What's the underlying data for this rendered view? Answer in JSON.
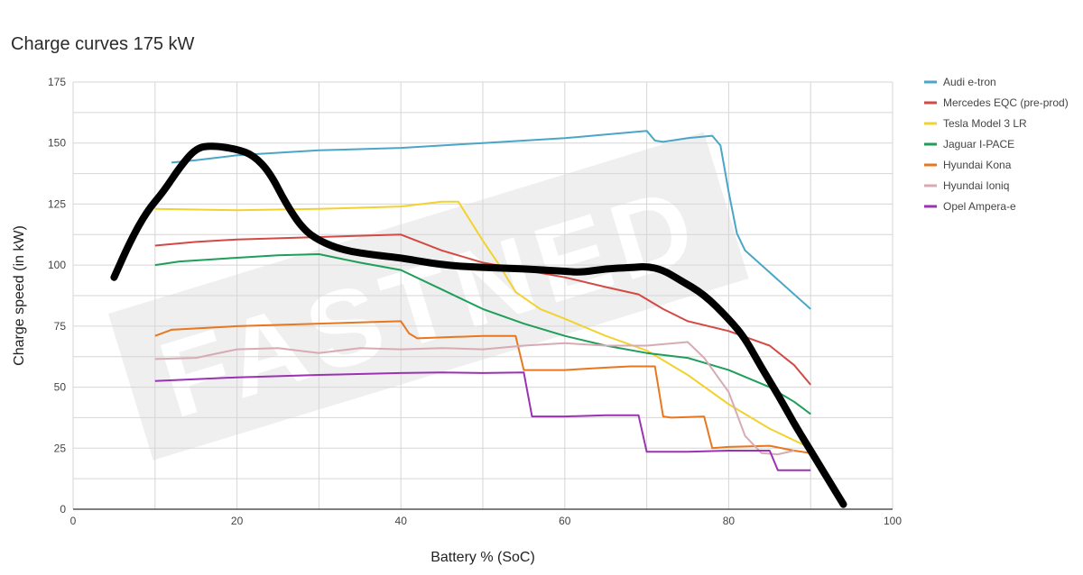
{
  "chart_data": {
    "type": "line",
    "title": "Charge curves 175 kW",
    "xlabel": "Battery % (SoC)",
    "ylabel": "Charge speed (in kW)",
    "xlim": [
      0,
      100
    ],
    "ylim": [
      0,
      175
    ],
    "xticks": [
      0,
      20,
      40,
      60,
      80,
      100
    ],
    "yticks": [
      0,
      25,
      50,
      75,
      100,
      125,
      150,
      175
    ],
    "grid": true,
    "legend_position": "right",
    "watermark": "FASTNED",
    "series": [
      {
        "name": "Audi e-tron",
        "color": "#4aa6c8",
        "points": [
          [
            12,
            142
          ],
          [
            15,
            143
          ],
          [
            20,
            145
          ],
          [
            30,
            147
          ],
          [
            40,
            148
          ],
          [
            50,
            150
          ],
          [
            60,
            152
          ],
          [
            65,
            153.5
          ],
          [
            70,
            155
          ],
          [
            71,
            151
          ],
          [
            72,
            150.5
          ],
          [
            75,
            152
          ],
          [
            78,
            153
          ],
          [
            79,
            149
          ],
          [
            80,
            130
          ],
          [
            81,
            113
          ],
          [
            82,
            106
          ],
          [
            85,
            97
          ],
          [
            90,
            82
          ]
        ]
      },
      {
        "name": "Mercedes EQC (pre-prod)",
        "color": "#d24a43",
        "points": [
          [
            10,
            108
          ],
          [
            15,
            109.5
          ],
          [
            20,
            110.5
          ],
          [
            30,
            111.5
          ],
          [
            40,
            112.5
          ],
          [
            45,
            106
          ],
          [
            50,
            101
          ],
          [
            55,
            98
          ],
          [
            60,
            95
          ],
          [
            65,
            91
          ],
          [
            69,
            88
          ],
          [
            72,
            82
          ],
          [
            75,
            77
          ],
          [
            80,
            73
          ],
          [
            85,
            67
          ],
          [
            88,
            59
          ],
          [
            90,
            51
          ]
        ]
      },
      {
        "name": "Tesla Model 3 LR",
        "color": "#f2d230",
        "points": [
          [
            10,
            123
          ],
          [
            20,
            122.5
          ],
          [
            30,
            123
          ],
          [
            40,
            124
          ],
          [
            45,
            126
          ],
          [
            47,
            126
          ],
          [
            50,
            110
          ],
          [
            52,
            100
          ],
          [
            54,
            89
          ],
          [
            57,
            82
          ],
          [
            60,
            78
          ],
          [
            65,
            71
          ],
          [
            70,
            65
          ],
          [
            75,
            55
          ],
          [
            80,
            43
          ],
          [
            85,
            33
          ],
          [
            90,
            25
          ]
        ]
      },
      {
        "name": "Jaguar I-PACE",
        "color": "#1f9e5a",
        "points": [
          [
            10,
            100
          ],
          [
            13,
            101.5
          ],
          [
            20,
            103
          ],
          [
            25,
            104
          ],
          [
            30,
            104.5
          ],
          [
            35,
            101
          ],
          [
            40,
            98
          ],
          [
            45,
            90
          ],
          [
            50,
            82
          ],
          [
            55,
            76
          ],
          [
            60,
            71
          ],
          [
            65,
            67
          ],
          [
            70,
            64
          ],
          [
            75,
            62
          ],
          [
            80,
            57
          ],
          [
            85,
            50
          ],
          [
            88,
            44
          ],
          [
            90,
            39
          ]
        ]
      },
      {
        "name": "Hyundai Kona",
        "color": "#e8771f",
        "points": [
          [
            10,
            71
          ],
          [
            12,
            73.5
          ],
          [
            20,
            75
          ],
          [
            30,
            76
          ],
          [
            40,
            77
          ],
          [
            41,
            72
          ],
          [
            42,
            70
          ],
          [
            50,
            71
          ],
          [
            54,
            71
          ],
          [
            55,
            57
          ],
          [
            60,
            57
          ],
          [
            65,
            58
          ],
          [
            68,
            58.5
          ],
          [
            71,
            58.5
          ],
          [
            72,
            38
          ],
          [
            73,
            37.5
          ],
          [
            77,
            38
          ],
          [
            78,
            25
          ],
          [
            80,
            25.5
          ],
          [
            85,
            26
          ],
          [
            88,
            24
          ],
          [
            90,
            23
          ]
        ]
      },
      {
        "name": "Hyundai Ioniq",
        "color": "#d7abb4",
        "points": [
          [
            10,
            61.5
          ],
          [
            15,
            62
          ],
          [
            20,
            65.5
          ],
          [
            25,
            66
          ],
          [
            30,
            64
          ],
          [
            35,
            66
          ],
          [
            40,
            65.5
          ],
          [
            45,
            66
          ],
          [
            50,
            65.5
          ],
          [
            55,
            67
          ],
          [
            60,
            68
          ],
          [
            65,
            67
          ],
          [
            70,
            67
          ],
          [
            75,
            68.5
          ],
          [
            77,
            62
          ],
          [
            80,
            48
          ],
          [
            82,
            30
          ],
          [
            84,
            23
          ],
          [
            86,
            22.5
          ],
          [
            88,
            24
          ]
        ]
      },
      {
        "name": "Opel Ampera-e",
        "color": "#9b32b3",
        "points": [
          [
            10,
            52.5
          ],
          [
            20,
            54
          ],
          [
            30,
            55
          ],
          [
            40,
            55.8
          ],
          [
            45,
            56
          ],
          [
            50,
            55.8
          ],
          [
            55,
            56
          ],
          [
            56,
            38
          ],
          [
            60,
            38
          ],
          [
            65,
            38.5
          ],
          [
            69,
            38.5
          ],
          [
            70,
            23.5
          ],
          [
            75,
            23.5
          ],
          [
            80,
            24
          ],
          [
            85,
            24
          ],
          [
            86,
            16
          ],
          [
            88,
            16
          ],
          [
            90,
            16
          ]
        ]
      }
    ],
    "annotation_curve": {
      "color": "#000000",
      "points": [
        [
          5,
          95
        ],
        [
          7,
          110
        ],
        [
          9,
          122
        ],
        [
          11,
          130
        ],
        [
          13,
          140
        ],
        [
          15,
          148
        ],
        [
          17,
          149
        ],
        [
          20,
          147.5
        ],
        [
          22,
          145
        ],
        [
          24,
          138
        ],
        [
          26,
          125
        ],
        [
          28,
          115
        ],
        [
          30,
          110
        ],
        [
          33,
          106
        ],
        [
          37,
          104
        ],
        [
          40,
          103
        ],
        [
          45,
          100
        ],
        [
          50,
          99
        ],
        [
          55,
          98.5
        ],
        [
          60,
          97.5
        ],
        [
          62,
          97
        ],
        [
          65,
          98.5
        ],
        [
          68,
          99
        ],
        [
          70,
          99.5
        ],
        [
          72,
          98
        ],
        [
          74,
          94
        ],
        [
          77,
          88
        ],
        [
          80,
          78
        ],
        [
          82,
          70
        ],
        [
          84,
          58
        ],
        [
          86,
          47
        ],
        [
          88,
          35
        ],
        [
          90,
          24
        ],
        [
          92,
          13
        ],
        [
          94,
          2
        ]
      ]
    }
  }
}
